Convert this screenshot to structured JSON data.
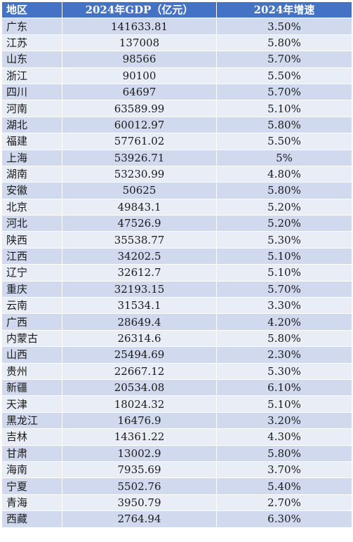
{
  "table": {
    "headers": {
      "region": "地区",
      "gdp": "2024年GDP（亿元）",
      "growth": "2024年增速"
    },
    "rows": [
      {
        "region": "广东",
        "gdp": "141633.81",
        "growth": "3.50%"
      },
      {
        "region": "江苏",
        "gdp": "137008",
        "growth": "5.80%"
      },
      {
        "region": "山东",
        "gdp": "98566",
        "growth": "5.70%"
      },
      {
        "region": "浙江",
        "gdp": "90100",
        "growth": "5.50%"
      },
      {
        "region": "四川",
        "gdp": "64697",
        "growth": "5.70%"
      },
      {
        "region": "河南",
        "gdp": "63589.99",
        "growth": "5.10%"
      },
      {
        "region": "湖北",
        "gdp": "60012.97",
        "growth": "5.80%"
      },
      {
        "region": "福建",
        "gdp": "57761.02",
        "growth": "5.50%"
      },
      {
        "region": "上海",
        "gdp": "53926.71",
        "growth": "5%"
      },
      {
        "region": "湖南",
        "gdp": "53230.99",
        "growth": "4.80%"
      },
      {
        "region": "安徽",
        "gdp": "50625",
        "growth": "5.80%"
      },
      {
        "region": "北京",
        "gdp": "49843.1",
        "growth": "5.20%"
      },
      {
        "region": "河北",
        "gdp": "47526.9",
        "growth": "5.20%"
      },
      {
        "region": "陕西",
        "gdp": "35538.77",
        "growth": "5.30%"
      },
      {
        "region": "江西",
        "gdp": "34202.5",
        "growth": "5.10%"
      },
      {
        "region": "辽宁",
        "gdp": "32612.7",
        "growth": "5.10%"
      },
      {
        "region": "重庆",
        "gdp": "32193.15",
        "growth": "5.70%"
      },
      {
        "region": "云南",
        "gdp": "31534.1",
        "growth": "3.30%"
      },
      {
        "region": "广西",
        "gdp": "28649.4",
        "growth": "4.20%"
      },
      {
        "region": "内蒙古",
        "gdp": "26314.6",
        "growth": "5.80%"
      },
      {
        "region": "山西",
        "gdp": "25494.69",
        "growth": "2.30%"
      },
      {
        "region": "贵州",
        "gdp": "22667.12",
        "growth": "5.30%"
      },
      {
        "region": "新疆",
        "gdp": "20534.08",
        "growth": "6.10%"
      },
      {
        "region": "天津",
        "gdp": "18024.32",
        "growth": "5.10%"
      },
      {
        "region": "黑龙江",
        "gdp": "16476.9",
        "growth": "3.20%"
      },
      {
        "region": "吉林",
        "gdp": "14361.22",
        "growth": "4.30%"
      },
      {
        "region": "甘肃",
        "gdp": "13002.9",
        "growth": "5.80%"
      },
      {
        "region": "海南",
        "gdp": "7935.69",
        "growth": "3.70%"
      },
      {
        "region": "宁夏",
        "gdp": "5502.76",
        "growth": "5.40%"
      },
      {
        "region": "青海",
        "gdp": "3950.79",
        "growth": "2.70%"
      },
      {
        "region": "西藏",
        "gdp": "2764.94",
        "growth": "6.30%"
      }
    ]
  },
  "colors": {
    "header_bg": "#4472c4",
    "header_text": "#ffffff",
    "row_band_a": "#d0d9ed",
    "row_band_b": "#e9edf6"
  }
}
